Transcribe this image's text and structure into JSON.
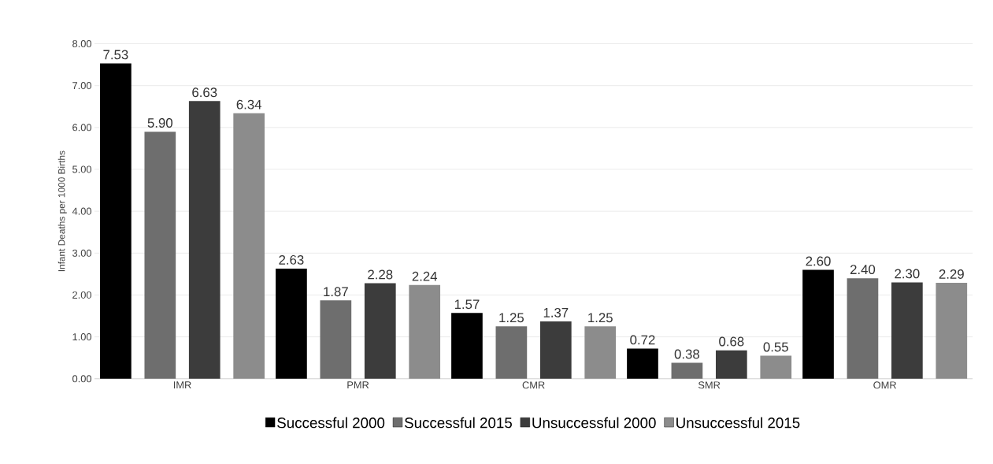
{
  "chart_data": {
    "type": "bar",
    "ylabel": "Infant Deaths per 1000 Births",
    "categories": [
      "IMR",
      "PMR",
      "CMR",
      "SMR",
      "OMR"
    ],
    "series": [
      {
        "name": "Successful 2000",
        "color": "#000000",
        "values": [
          7.53,
          2.63,
          1.57,
          0.72,
          2.6
        ],
        "value_labels": [
          "7.53",
          "2.63",
          "1.57",
          "0.72",
          "2.60"
        ]
      },
      {
        "name": "Successful 2015",
        "color": "#6e6e6e",
        "values": [
          5.9,
          1.87,
          1.25,
          0.38,
          2.4
        ],
        "value_labels": [
          "5.90",
          "1.87",
          "1.25",
          "0.38",
          "2.40"
        ]
      },
      {
        "name": "Unsuccessful 2000",
        "color": "#3c3c3c",
        "values": [
          6.63,
          2.28,
          1.37,
          0.68,
          2.3
        ],
        "value_labels": [
          "6.63",
          "2.28",
          "1.37",
          "0.68",
          "2.30"
        ]
      },
      {
        "name": "Unsuccessful 2015",
        "color": "#8c8c8c",
        "values": [
          6.34,
          2.24,
          1.25,
          0.55,
          2.29
        ],
        "value_labels": [
          "6.34",
          "2.24",
          "1.25",
          "0.55",
          "2.29"
        ]
      }
    ],
    "ylim": [
      0,
      8
    ],
    "yticks": [
      {
        "value": 0,
        "label": "0.00"
      },
      {
        "value": 1,
        "label": "1.00"
      },
      {
        "value": 2,
        "label": "2.00"
      },
      {
        "value": 3,
        "label": "3.00"
      },
      {
        "value": 4,
        "label": "4.00"
      },
      {
        "value": 5,
        "label": "5.00"
      },
      {
        "value": 6,
        "label": "6.00"
      },
      {
        "value": 7,
        "label": "7.00"
      },
      {
        "value": 8,
        "label": "8.00"
      }
    ],
    "grid": "y",
    "legend": "bottom"
  }
}
